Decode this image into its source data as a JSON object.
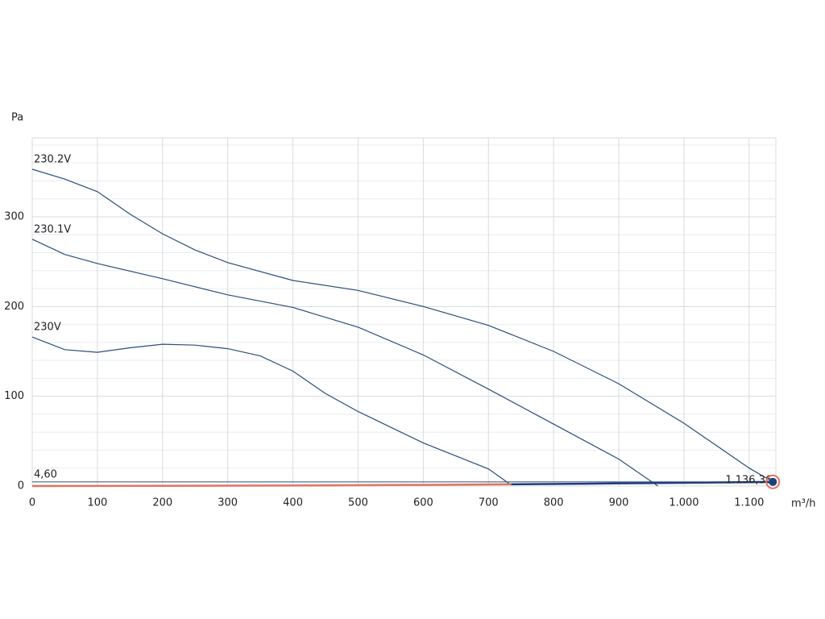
{
  "chart_data": {
    "type": "line",
    "y_axis_label": "Pa",
    "x_axis_label": "m³/h",
    "xlim": [
      0,
      1141
    ],
    "ylim": [
      0,
      388
    ],
    "xticks": [
      0,
      100,
      200,
      300,
      400,
      500,
      600,
      700,
      800,
      900,
      {
        "value": 1000,
        "label": "1.000"
      },
      {
        "value": 1100,
        "label": "1.100"
      }
    ],
    "yticks": [
      0,
      100,
      200,
      300
    ],
    "minor_yticks": [
      20,
      40,
      60,
      80,
      120,
      140,
      160,
      180,
      220,
      240,
      260,
      280,
      320,
      340,
      360,
      380
    ],
    "grid": true,
    "series": [
      {
        "name": "230.2V",
        "color": "#2d4d7c",
        "x": [
          0,
          50,
          100,
          150,
          200,
          250,
          300,
          400,
          500,
          600,
          700,
          800,
          900,
          1000,
          1100,
          1136.36
        ],
        "values": [
          353,
          342,
          328,
          303,
          281,
          263,
          249,
          229,
          218,
          200,
          179,
          150,
          114,
          70,
          20,
          4.6
        ]
      },
      {
        "name": "230.1V",
        "color": "#2d4d7c",
        "x": [
          0,
          50,
          100,
          200,
          300,
          400,
          450,
          500,
          600,
          700,
          800,
          900,
          960
        ],
        "values": [
          275,
          258,
          248,
          231,
          213,
          199,
          188,
          177,
          146,
          108,
          69,
          30,
          0
        ]
      },
      {
        "name": "230V",
        "color": "#2d4d7c",
        "x": [
          0,
          50,
          100,
          150,
          200,
          250,
          300,
          350,
          400,
          450,
          500,
          600,
          700,
          733
        ],
        "values": [
          166,
          152,
          149,
          154,
          158,
          157,
          153,
          145,
          128,
          103,
          83,
          48,
          19,
          2
        ]
      }
    ],
    "system_curve": [
      {
        "color": "#e0735f",
        "x": [
          0,
          200,
          400,
          600,
          735
        ],
        "values": [
          0,
          0.14,
          0.57,
          1.28,
          1.93
        ]
      },
      {
        "color": "#1f3f7a",
        "x": [
          735,
          850,
          950,
          1050,
          1136.36
        ],
        "values": [
          1.93,
          2.58,
          3.22,
          3.93,
          4.6
        ]
      }
    ],
    "operating_point": {
      "x": 1136.36,
      "y": 4.6,
      "x_label": "1.136,36",
      "y_label": "4,60",
      "color": "#1f3f7a",
      "ring_color": "#e0735f"
    }
  }
}
